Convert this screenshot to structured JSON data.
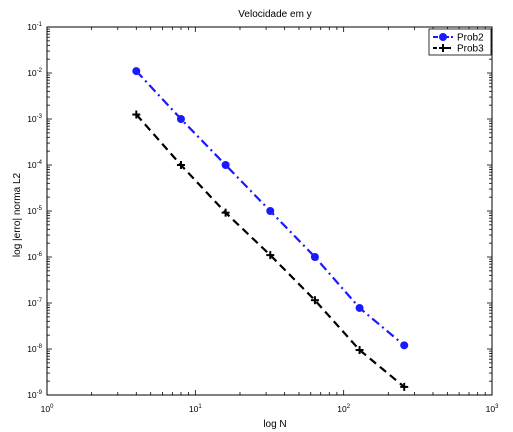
{
  "chart_data": {
    "type": "line",
    "title": "Velocidade em y",
    "xlabel": "log N",
    "ylabel": "log |erro| norma L2",
    "xscale": "log",
    "yscale": "log",
    "xlim": [
      1,
      1000
    ],
    "ylim": [
      1e-09,
      0.1
    ],
    "x_ticks": [
      {
        "base": "10",
        "exp": "0"
      },
      {
        "base": "10",
        "exp": "1"
      },
      {
        "base": "10",
        "exp": "2"
      },
      {
        "base": "10",
        "exp": "3"
      }
    ],
    "y_ticks": [
      {
        "base": "10",
        "exp": "-9"
      },
      {
        "base": "10",
        "exp": "-8"
      },
      {
        "base": "10",
        "exp": "-7"
      },
      {
        "base": "10",
        "exp": "-6"
      },
      {
        "base": "10",
        "exp": "-5"
      },
      {
        "base": "10",
        "exp": "-4"
      },
      {
        "base": "10",
        "exp": "-3"
      },
      {
        "base": "10",
        "exp": "-2"
      },
      {
        "base": "10",
        "exp": "-1"
      }
    ],
    "grid": false,
    "legend_position": "top-right",
    "series": [
      {
        "name": "Prob2",
        "color": "#1a1aff",
        "line_style": "dash-dot",
        "marker": "circle",
        "x": [
          4,
          8,
          16,
          32,
          64,
          128,
          256
        ],
        "y": [
          0.011,
          0.001,
          0.0001,
          1e-05,
          1e-06,
          7.8e-08,
          1.2e-08
        ]
      },
      {
        "name": "Prob3",
        "color": "#000000",
        "line_style": "dashed",
        "marker": "plus",
        "x": [
          4,
          8,
          16,
          32,
          64,
          128,
          256
        ],
        "y": [
          0.00125,
          0.0001,
          9.2e-06,
          1.1e-06,
          1.15e-07,
          9.5e-09,
          1.5e-09
        ]
      }
    ]
  }
}
